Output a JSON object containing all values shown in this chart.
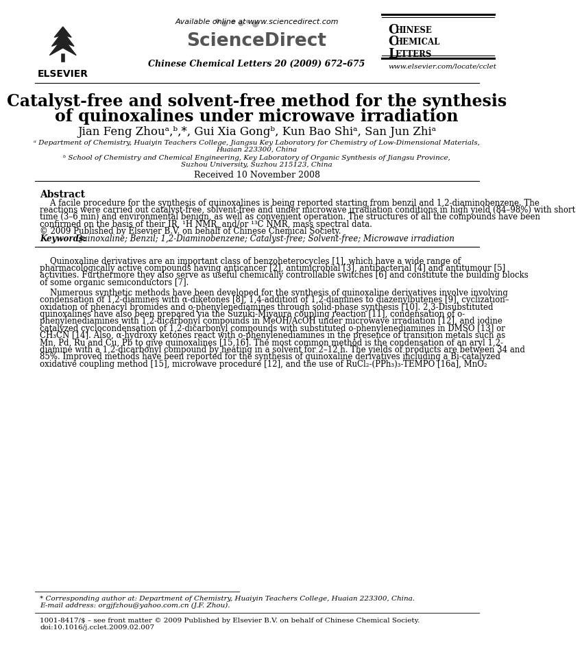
{
  "bg_color": "#ffffff",
  "available_online": "Available online at www.sciencedirect.com",
  "journal_citation": "Chinese Chemical Letters 20 (2009) 672–675",
  "ccl_line1": "CHINESE",
  "ccl_line2": "CHEMICAL",
  "ccl_line3": "LETTERS",
  "ccl_website": "www.elsevier.com/locate/cclet",
  "title_line1": "Catalyst-free and solvent-free method for the synthesis",
  "title_line2": "of quinoxalines under microwave irradiation",
  "author_line": "Jian Feng Zhouᵃ,ᵇ,*, Gui Xia Gongᵇ, Kun Bao Shiᵃ, San Jun Zhiᵃ",
  "affil_a1": "ᵃ Department of Chemistry, Huaiyin Teachers College, Jiangsu Key Laboratory for Chemistry of Low-Dimensional Materials,",
  "affil_a2": "Huaian 223300, China",
  "affil_b1": "ᵇ School of Chemistry and Chemical Engineering, Key Laboratory of Organic Synthesis of Jiangsu Province,",
  "affil_b2": "Suzhou University, Suzhou 215123, China",
  "received": "Received 10 November 2008",
  "abstract_title": "Abstract",
  "abstract_lines": [
    "    A facile procedure for the synthesis of quinoxalines is being reported starting from benzil and 1,2-diaminobenzene. The",
    "reactions were carried out catalyst-free, solvent-free and under microwave irradiation conditions in high yield (84–98%) with short",
    "time (3–6 min) and environmental benign, as well as convenient operation. The structures of all the compounds have been",
    "confirmed on the basis of their IR, ¹H NMR, and/or ¹³C NMR, mass spectral data.",
    "© 2009 Published by Elsevier B.V. on behalf of Chinese Chemical Society."
  ],
  "keywords_label": "Keywords:",
  "keywords_text": "  Quinoxaline; Benzil; 1,2-Diaminobenzene; Catalyst-free; Solvent-free; Microwave irradiation",
  "intro_lines_1": [
    "    Quinoxaline derivatives are an important class of benzoheterocycles [1], which have a wide range of",
    "pharmacologically active compounds having anticancer [2], antimicrobial [3], antibacterial [4] and antitumour [5]",
    "activities. Furthermore they also serve as useful chemically controllable switches [6] and constitute the building blocks",
    "of some organic semiconductors [7]."
  ],
  "intro_lines_2": [
    "    Numerous synthetic methods have been developed for the synthesis of quinoxaline derivatives involve involving",
    "condensation of 1,2-diamines with α-diketones [8], 1,4-addition of 1,2-diamines to diazenylbutenes [9], cyclization–",
    "oxidation of phenacyl bromides and o-phenylenediamines through solid-phase synthesis [10]. 2,3-Disubstituted",
    "quinoxalines have also been prepared via the Suzuki-Miyaura coupling reaction [11], condensation of o-",
    "phenylenediamines with 1,2-dicarbonyl compounds in MeOH/AcOH under microwave irradiation [12], and iodine",
    "catalyzed cyclocondensation of 1,2-dicarbonyl compounds with substituted o-phenylenediamines in DMSO [13] or",
    "CH₃CN [14]. Also, α-hydroxy ketones react with o-phenylenediamines in the presence of transition metals such as",
    "Mn, Pd, Ru and Cu, Pb to give quinoxalines [15,16]. The most common method is the condensation of an aryl 1,2-",
    "diamine with a 1,2-dicarbonyl compound by heating in a solvent for 2–12 h. The yields of products are between 34 and",
    "85%. Improved methods have been reported for the synthesis of quinoxaline derivatives including a Bi-catalyzed",
    "oxidative coupling method [15], microwave procedure [12], and the use of RuCl₂-(PPh₃)₃-TEMPO [16a], MnO₂"
  ],
  "footnote_star": "* Corresponding author at: Department of Chemistry, Huaiyin Teachers College, Huaian 223300, China.",
  "footnote_email": "E-mail address: orgjfzhou@yahoo.com.cn (J.F. Zhou).",
  "footnote_issn": "1001-8417/$ – see front matter © 2009 Published by Elsevier B.V. on behalf of Chinese Chemical Society.",
  "footnote_doi": "doi:10.1016/j.cclet.2009.02.007"
}
